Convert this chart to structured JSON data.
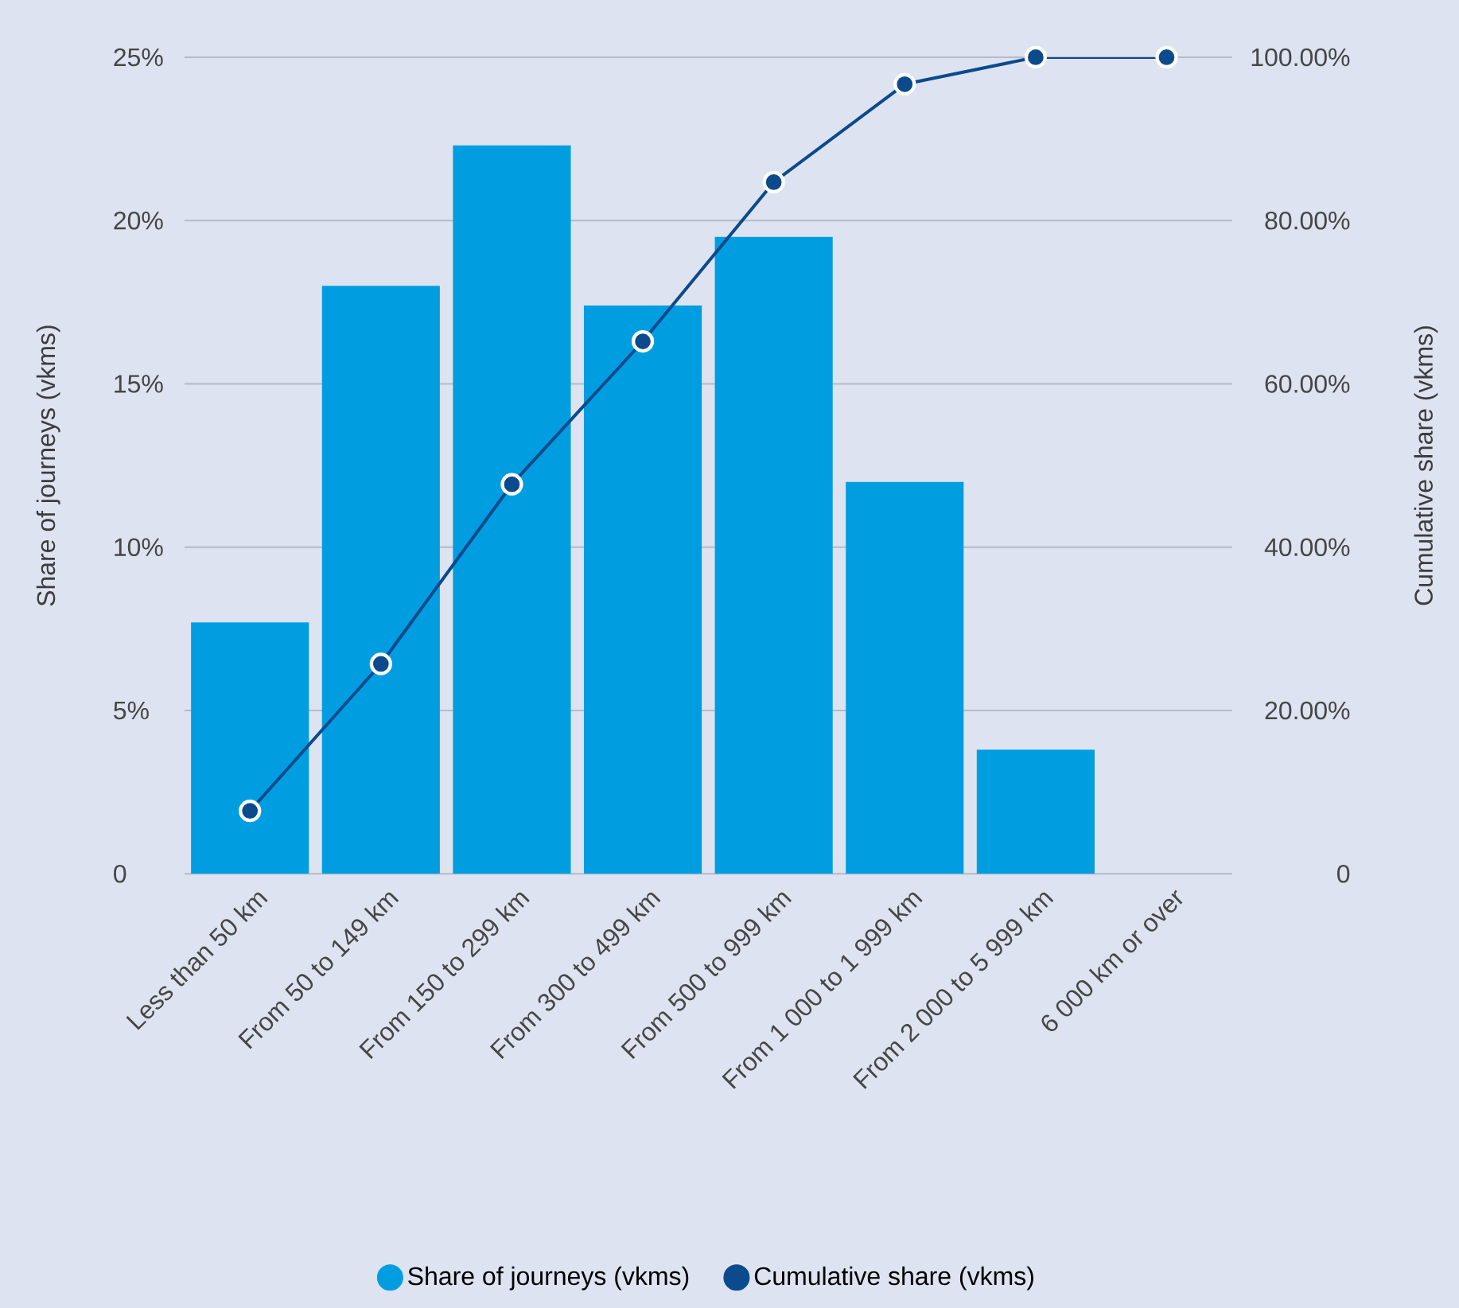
{
  "chart_data": {
    "type": "bar",
    "categories": [
      "Less than 50 km",
      "From 50 to 149 km",
      "From 150 to 299 km",
      "From 300 to 499 km",
      "From 500 to 999 km",
      "From 1 000 to 1 999 km",
      "From 2 000 to 5 999 km",
      "6 000 km or over"
    ],
    "series": [
      {
        "name": "Share of journeys (vkms)",
        "color": "#009ee0",
        "values": [
          7.7,
          18.0,
          22.3,
          17.4,
          19.5,
          12.0,
          3.8,
          0
        ]
      },
      {
        "name": "Cumulative share (vkms)",
        "type": "line",
        "axis": "y2",
        "color": "#0b4a8c",
        "values": [
          7.7,
          25.7,
          47.7,
          65.2,
          84.7,
          96.7,
          100,
          100
        ]
      }
    ],
    "ylabel": "Share of journeys (vkms)",
    "y2label": "Cumulative share (vkms)",
    "ylim": [
      0,
      25
    ],
    "yticks": [
      0,
      {
        "value": 5,
        "label": "5%"
      },
      {
        "value": 10,
        "label": "10%"
      },
      {
        "value": 15,
        "label": "15%"
      },
      {
        "value": 20,
        "label": "20%"
      },
      {
        "value": 25,
        "label": "25%"
      }
    ],
    "y2lim": [
      0,
      100
    ],
    "y2ticks": [
      0,
      {
        "value": 20,
        "label": "20.00%"
      },
      {
        "value": 40,
        "label": "40.00%"
      },
      {
        "value": 60,
        "label": "60.00%"
      },
      {
        "value": 80,
        "label": "80.00%"
      },
      {
        "value": 100,
        "label": "100.00%"
      }
    ],
    "grid": "y",
    "legend": "bottom",
    "marker": "circle",
    "line_style": "solid"
  }
}
